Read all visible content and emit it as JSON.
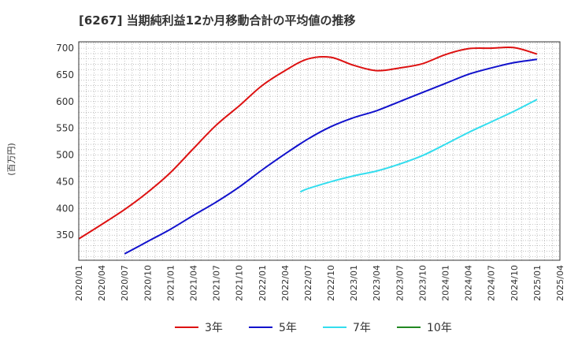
{
  "chart_data": {
    "type": "line",
    "title": "[6267]  当期純利益12か月移動合計の平均値の推移",
    "ylabel": "(百万円)",
    "xlabel": "",
    "ylim": [
      303,
      712
    ],
    "yticks": [
      350,
      400,
      450,
      500,
      550,
      600,
      650,
      700
    ],
    "xlim": [
      "2020/01",
      "2025/04"
    ],
    "xticks": [
      "2020/01",
      "2020/04",
      "2020/07",
      "2020/10",
      "2021/01",
      "2021/04",
      "2021/07",
      "2021/10",
      "2022/01",
      "2022/04",
      "2022/07",
      "2022/10",
      "2023/01",
      "2023/04",
      "2023/07",
      "2023/10",
      "2024/01",
      "2024/04",
      "2024/07",
      "2024/10",
      "2025/01",
      "2025/04"
    ],
    "grid": true,
    "legend_position": "bottom",
    "series": [
      {
        "name": "3年",
        "color": "#dd1111",
        "x": [
          "2020/01",
          "2020/04",
          "2020/07",
          "2020/10",
          "2021/01",
          "2021/04",
          "2021/07",
          "2021/10",
          "2022/01",
          "2022/04",
          "2022/07",
          "2022/10",
          "2023/01",
          "2023/04",
          "2023/07",
          "2023/10",
          "2024/01",
          "2024/04",
          "2024/07",
          "2024/10",
          "2025/01"
        ],
        "values": [
          343,
          370,
          398,
          430,
          467,
          512,
          556,
          592,
          630,
          658,
          680,
          683,
          668,
          658,
          663,
          671,
          688,
          699,
          700,
          701,
          689
        ]
      },
      {
        "name": "5年",
        "color": "#1111cc",
        "x": [
          "2020/07",
          "2020/10",
          "2021/01",
          "2021/04",
          "2021/07",
          "2021/10",
          "2022/01",
          "2022/04",
          "2022/07",
          "2022/10",
          "2023/01",
          "2023/04",
          "2023/07",
          "2023/10",
          "2024/01",
          "2024/04",
          "2024/07",
          "2024/10",
          "2025/01"
        ],
        "values": [
          315,
          338,
          361,
          387,
          412,
          440,
          472,
          502,
          530,
          553,
          570,
          583,
          600,
          617,
          634,
          651,
          663,
          673,
          679
        ]
      },
      {
        "name": "7年",
        "color": "#33ddee",
        "x": [
          "2022/06",
          "2022/07",
          "2022/10",
          "2023/01",
          "2023/04",
          "2023/07",
          "2023/10",
          "2024/01",
          "2024/04",
          "2024/07",
          "2024/10",
          "2025/01"
        ],
        "values": [
          431,
          437,
          450,
          461,
          470,
          483,
          499,
          520,
          542,
          562,
          582,
          604
        ]
      },
      {
        "name": "10年",
        "color": "#228822",
        "x": [],
        "values": []
      }
    ]
  }
}
